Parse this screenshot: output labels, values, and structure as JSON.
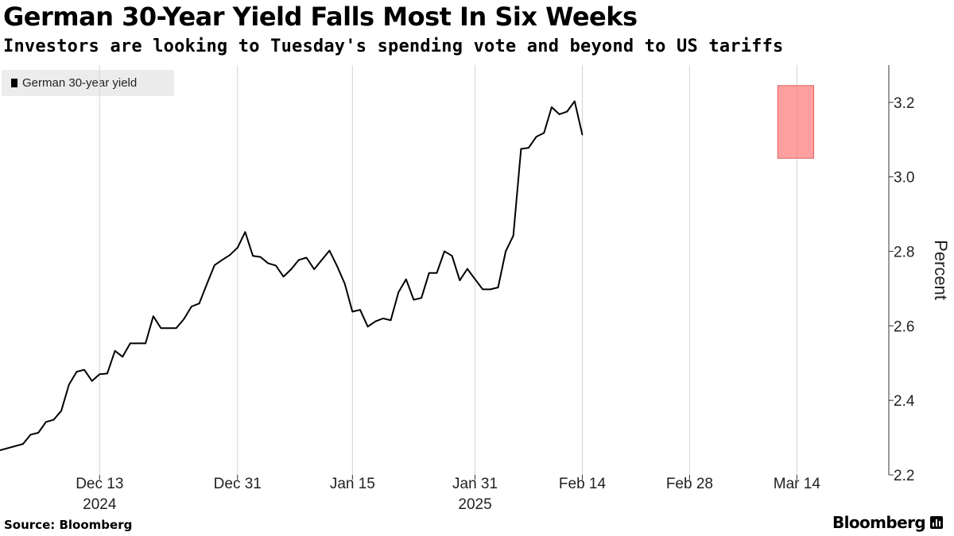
{
  "header": {
    "title": "German 30-Year Yield Falls Most In Six Weeks",
    "subtitle": "Investors are looking to Tuesday's spending vote and beyond to US tariffs"
  },
  "legend": {
    "label": "German 30-year yield",
    "color": "#000000"
  },
  "footer": {
    "source": "Source: Bloomberg",
    "brand": "Bloomberg"
  },
  "chart_data": {
    "type": "line",
    "title": "German 30-Year Yield Falls Most In Six Weeks",
    "subtitle": "Investors are looking to Tuesday's spending vote and beyond to US tariffs",
    "xlabel": "",
    "ylabel": "Percent",
    "ylim": [
      2.2,
      3.3
    ],
    "yticks": [
      2.2,
      2.4,
      2.6,
      2.8,
      3.0,
      3.2
    ],
    "ytick_labels": [
      "2.2",
      "2.4",
      "2.6",
      "2.8",
      "3.0",
      "3.2"
    ],
    "x_start_offset": -13,
    "x_end_offset": 103,
    "xticks": [
      {
        "offset": 0,
        "label": "Dec 13",
        "sublabel": "2024"
      },
      {
        "offset": 18,
        "label": "Dec 31",
        "sublabel": ""
      },
      {
        "offset": 33,
        "label": "Jan 15",
        "sublabel": ""
      },
      {
        "offset": 49,
        "label": "Jan 31",
        "sublabel": "2025"
      },
      {
        "offset": 63,
        "label": "Feb 14",
        "sublabel": ""
      },
      {
        "offset": 77,
        "label": "Feb 28",
        "sublabel": ""
      },
      {
        "offset": 91,
        "label": "Mar 14",
        "sublabel": ""
      }
    ],
    "grid": "vertical",
    "legend_position": "top-left",
    "highlight": {
      "x_from": 88.5,
      "x_to": 93.2,
      "y_from": 3.05,
      "y_to": 3.245,
      "color": "#ff8080"
    },
    "series": [
      {
        "name": "German 30-year yield",
        "color": "#000000",
        "points": [
          [
            -13,
            2.266
          ],
          [
            -10,
            2.283
          ],
          [
            -9,
            2.308
          ],
          [
            -8,
            2.313
          ],
          [
            -7,
            2.342
          ],
          [
            -6,
            2.348
          ],
          [
            -5,
            2.372
          ],
          [
            -4,
            2.442
          ],
          [
            -3,
            2.477
          ],
          [
            -2,
            2.482
          ],
          [
            -1,
            2.452
          ],
          [
            0,
            2.47
          ],
          [
            1,
            2.472
          ],
          [
            2,
            2.533
          ],
          [
            3,
            2.517
          ],
          [
            4,
            2.553
          ],
          [
            6,
            2.553
          ],
          [
            7,
            2.626
          ],
          [
            8,
            2.594
          ],
          [
            10,
            2.594
          ],
          [
            11,
            2.618
          ],
          [
            12,
            2.652
          ],
          [
            13,
            2.66
          ],
          [
            14,
            2.712
          ],
          [
            15,
            2.763
          ],
          [
            16,
            2.777
          ],
          [
            17,
            2.79
          ],
          [
            18,
            2.81
          ],
          [
            19,
            2.852
          ],
          [
            20,
            2.788
          ],
          [
            21,
            2.785
          ],
          [
            22,
            2.768
          ],
          [
            23,
            2.762
          ],
          [
            24,
            2.732
          ],
          [
            25,
            2.752
          ],
          [
            26,
            2.777
          ],
          [
            27,
            2.783
          ],
          [
            28,
            2.752
          ],
          [
            29,
            2.777
          ],
          [
            30,
            2.802
          ],
          [
            31,
            2.76
          ],
          [
            32,
            2.713
          ],
          [
            33,
            2.638
          ],
          [
            34,
            2.643
          ],
          [
            35,
            2.598
          ],
          [
            36,
            2.612
          ],
          [
            37,
            2.62
          ],
          [
            38,
            2.615
          ],
          [
            39,
            2.69
          ],
          [
            40,
            2.725
          ],
          [
            41,
            2.67
          ],
          [
            42,
            2.675
          ],
          [
            43,
            2.742
          ],
          [
            44,
            2.742
          ],
          [
            45,
            2.8
          ],
          [
            46,
            2.788
          ],
          [
            47,
            2.722
          ],
          [
            48,
            2.753
          ],
          [
            49,
            2.725
          ],
          [
            50,
            2.698
          ],
          [
            51,
            2.698
          ],
          [
            52,
            2.703
          ],
          [
            53,
            2.8
          ],
          [
            54,
            2.842
          ],
          [
            55,
            3.075
          ],
          [
            56,
            3.078
          ],
          [
            57,
            3.108
          ],
          [
            58,
            3.118
          ],
          [
            59,
            3.187
          ],
          [
            60,
            3.168
          ],
          [
            61,
            3.175
          ],
          [
            62,
            3.203
          ],
          [
            63,
            3.113
          ]
        ]
      }
    ]
  }
}
